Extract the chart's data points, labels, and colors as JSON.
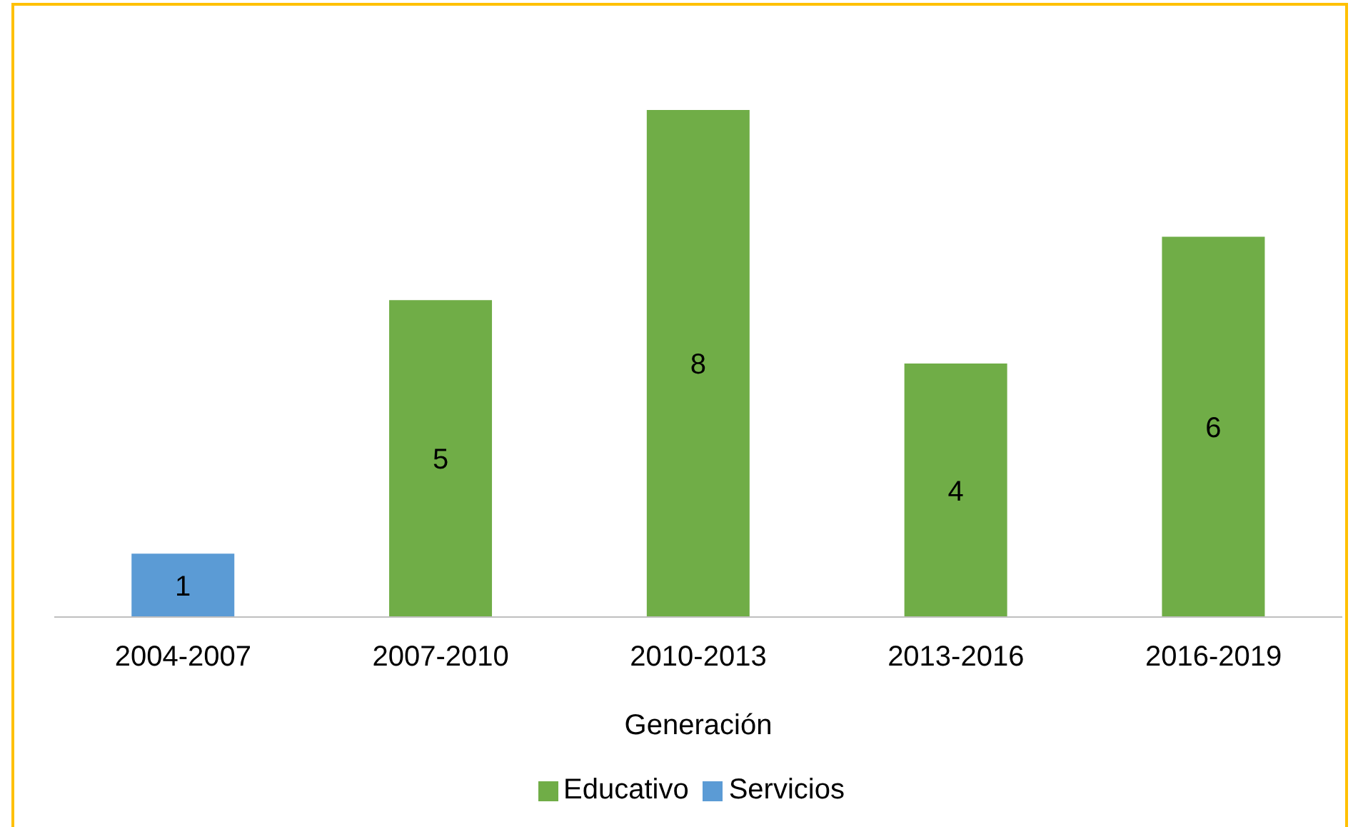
{
  "chart_data": {
    "type": "bar",
    "xlabel": "Generación",
    "categories": [
      "2004-2007",
      "2007-2010",
      "2010-2013",
      "2013-2016",
      "2016-2019"
    ],
    "series": [
      {
        "name": "Educativo",
        "color": "#70ad47",
        "values": [
          null,
          5,
          8,
          4,
          6
        ]
      },
      {
        "name": "Servicios",
        "color": "#5b9bd5",
        "values": [
          1,
          null,
          null,
          null,
          null
        ]
      }
    ],
    "stacked": true,
    "data_labels": true,
    "legend": "bottom",
    "grid": false
  }
}
